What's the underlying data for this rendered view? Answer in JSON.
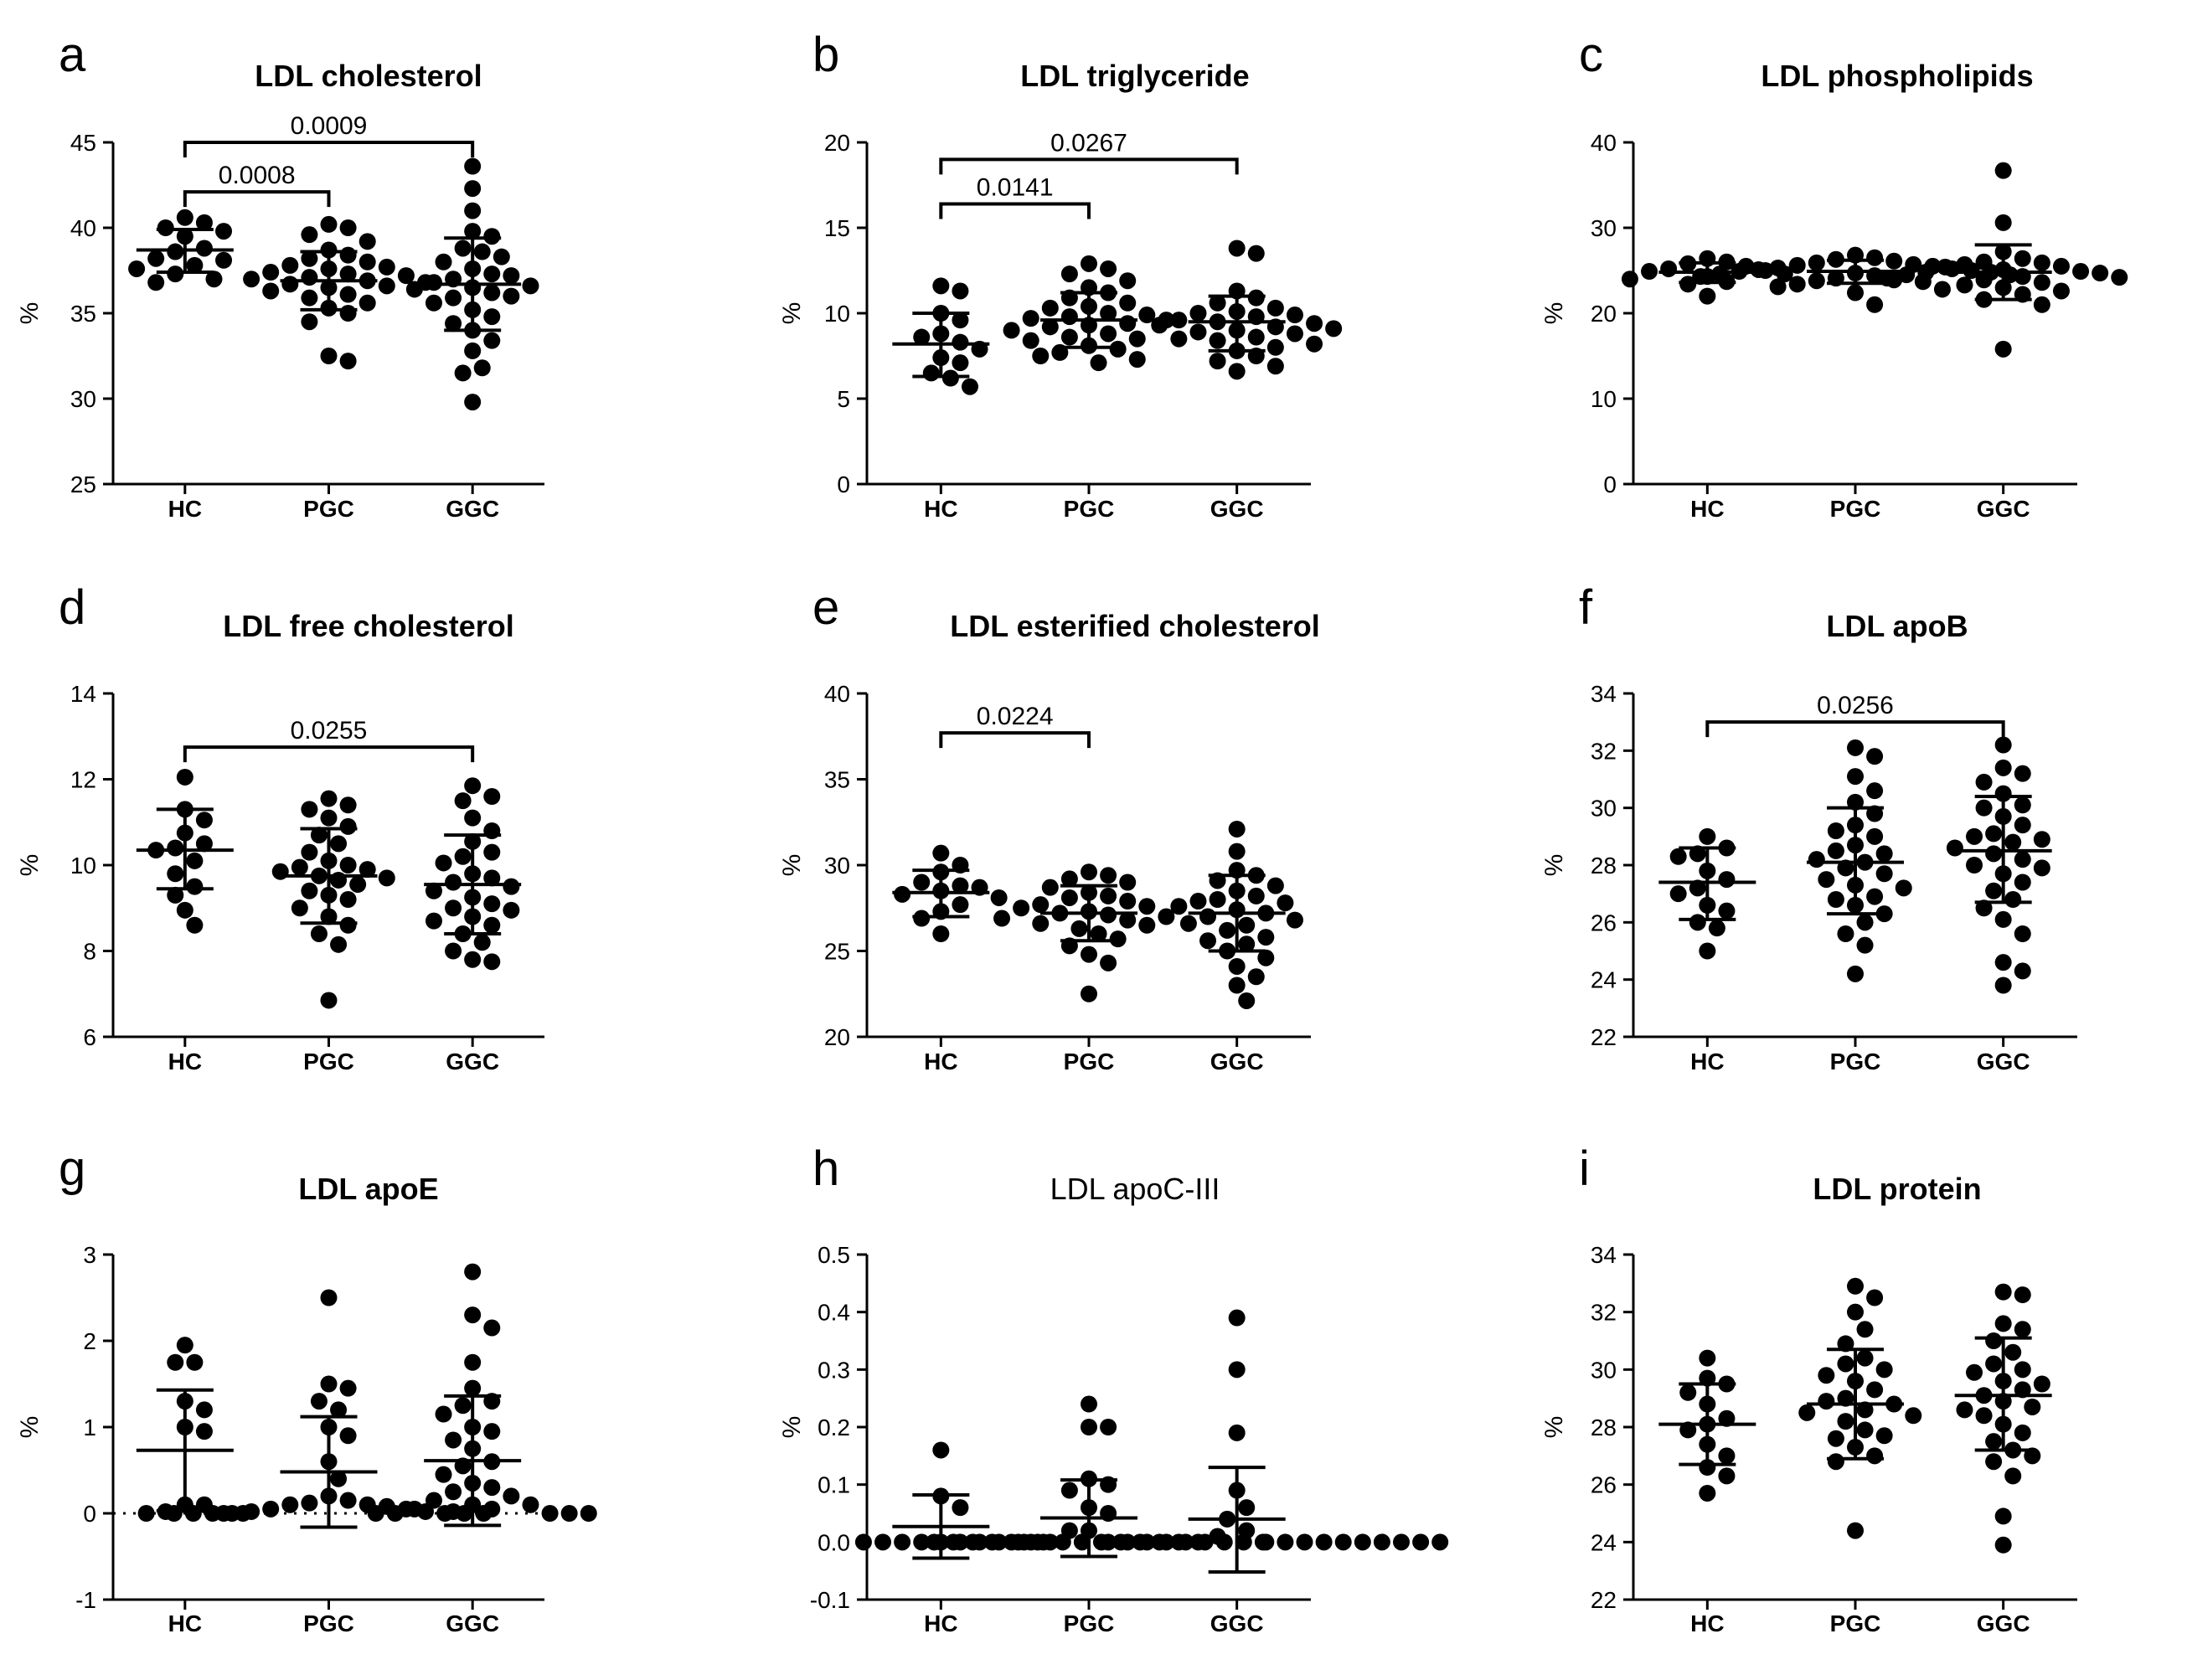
{
  "chart_data": [
    {
      "panel": "a",
      "type": "scatter",
      "title": "LDL cholesterol",
      "ylabel": "%",
      "ylim": [
        25,
        45
      ],
      "yticks": [
        25,
        30,
        35,
        40,
        45
      ],
      "categories": [
        "HC",
        "PGC",
        "GGC"
      ],
      "groups": [
        {
          "name": "HC",
          "mean": 38.7,
          "sd_low": 37.4,
          "sd_high": 39.9,
          "values": [
            40.6,
            40.3,
            40.0,
            39.8,
            39.5,
            38.8,
            38.6,
            38.2,
            37.8,
            37.6,
            37.3,
            37.0,
            36.8,
            38.1
          ]
        },
        {
          "name": "PGC",
          "mean": 36.9,
          "sd_low": 35.2,
          "sd_high": 38.6,
          "values": [
            40.2,
            40.0,
            39.6,
            39.2,
            38.7,
            38.4,
            38.0,
            37.8,
            37.6,
            37.4,
            37.2,
            37.1,
            37.0,
            36.9,
            36.8,
            36.7,
            36.5,
            36.3,
            36.1,
            35.9,
            35.6,
            35.3,
            35.0,
            34.5,
            32.5,
            32.2,
            37.3,
            36.6,
            38.2,
            37.7
          ]
        },
        {
          "name": "GGC",
          "mean": 36.7,
          "sd_low": 34.0,
          "sd_high": 39.4,
          "values": [
            43.6,
            42.3,
            41.0,
            39.8,
            39.5,
            38.8,
            38.6,
            38.0,
            37.6,
            37.3,
            37.0,
            36.8,
            36.6,
            36.4,
            36.2,
            36.0,
            35.6,
            35.2,
            34.8,
            34.4,
            34.0,
            33.4,
            32.8,
            31.8,
            31.5,
            29.8,
            37.2,
            36.5,
            35.9,
            38.3
          ]
        }
      ],
      "comparisons": [
        {
          "from": "HC",
          "to": "PGC",
          "label": "0.0008",
          "y": 42.1
        },
        {
          "from": "HC",
          "to": "GGC",
          "label": "0.0009",
          "y": 45.0
        }
      ]
    },
    {
      "panel": "b",
      "type": "scatter",
      "title": "LDL triglyceride",
      "ylabel": "%",
      "ylim": [
        0,
        20
      ],
      "yticks": [
        0,
        5,
        10,
        15,
        20
      ],
      "categories": [
        "HC",
        "PGC",
        "GGC"
      ],
      "groups": [
        {
          "name": "HC",
          "mean": 8.2,
          "sd_low": 6.3,
          "sd_high": 10.0,
          "values": [
            11.6,
            11.3,
            10.0,
            9.6,
            8.8,
            8.3,
            7.9,
            7.4,
            7.1,
            6.5,
            6.2,
            5.7,
            8.6
          ]
        },
        {
          "name": "PGC",
          "mean": 9.6,
          "sd_low": 8.0,
          "sd_high": 11.2,
          "values": [
            12.9,
            12.6,
            12.3,
            11.9,
            11.5,
            11.2,
            10.9,
            10.6,
            10.3,
            10.0,
            9.8,
            9.6,
            9.4,
            9.2,
            9.0,
            8.8,
            8.6,
            8.4,
            8.1,
            7.9,
            7.7,
            7.5,
            7.3,
            7.1,
            9.7,
            9.9,
            10.4,
            8.5,
            9.3
          ]
        },
        {
          "name": "GGC",
          "mean": 9.5,
          "sd_low": 7.8,
          "sd_high": 11.0,
          "values": [
            13.8,
            13.5,
            11.3,
            10.9,
            10.6,
            10.3,
            10.0,
            9.8,
            9.6,
            9.5,
            9.4,
            9.3,
            9.2,
            9.0,
            8.8,
            8.6,
            8.4,
            8.2,
            8.0,
            7.8,
            7.5,
            7.2,
            6.9,
            6.6,
            9.9,
            10.1,
            8.9,
            9.1,
            8.5
          ]
        }
      ],
      "comparisons": [
        {
          "from": "HC",
          "to": "PGC",
          "label": "0.0141",
          "y": 16.4
        },
        {
          "from": "HC",
          "to": "GGC",
          "label": "0.0267",
          "y": 19.0
        }
      ]
    },
    {
      "panel": "c",
      "type": "scatter",
      "title": "LDL phospholipids",
      "ylabel": "%",
      "ylim": [
        0,
        40
      ],
      "yticks": [
        0,
        10,
        20,
        30,
        40
      ],
      "categories": [
        "HC",
        "PGC",
        "GGC"
      ],
      "groups": [
        {
          "name": "HC",
          "mean": 24.8,
          "sd_low": 23.6,
          "sd_high": 25.9,
          "values": [
            26.4,
            26.0,
            25.8,
            25.5,
            25.2,
            24.9,
            24.6,
            24.3,
            24.0,
            23.7,
            23.4,
            22.0,
            25.0
          ]
        },
        {
          "name": "PGC",
          "mean": 24.9,
          "sd_low": 23.5,
          "sd_high": 26.2,
          "values": [
            26.8,
            26.5,
            26.3,
            26.1,
            25.9,
            25.7,
            25.5,
            25.3,
            25.1,
            25.0,
            24.9,
            24.8,
            24.7,
            24.6,
            24.5,
            24.3,
            24.1,
            23.9,
            23.7,
            23.4,
            23.1,
            22.8,
            22.4,
            21.0,
            25.6,
            25.2,
            24.4,
            23.8
          ]
        },
        {
          "name": "GGC",
          "mean": 24.8,
          "sd_low": 21.6,
          "sd_high": 28.0,
          "values": [
            36.7,
            30.6,
            27.2,
            26.4,
            26.0,
            25.7,
            25.4,
            25.1,
            24.9,
            24.7,
            24.5,
            24.3,
            24.1,
            23.9,
            23.6,
            23.3,
            23.0,
            22.6,
            22.2,
            21.6,
            21.0,
            15.8,
            25.5,
            24.8,
            24.2,
            25.9
          ]
        }
      ],
      "comparisons": []
    },
    {
      "panel": "d",
      "type": "scatter",
      "title": "LDL free cholesterol",
      "ylabel": "%",
      "ylim": [
        6,
        14
      ],
      "yticks": [
        6,
        8,
        10,
        12,
        14
      ],
      "categories": [
        "HC",
        "PGC",
        "GGC"
      ],
      "groups": [
        {
          "name": "HC",
          "mean": 10.35,
          "sd_low": 9.45,
          "sd_high": 11.3,
          "values": [
            12.05,
            11.3,
            11.05,
            10.75,
            10.5,
            10.4,
            10.35,
            10.1,
            9.8,
            9.5,
            9.3,
            8.95,
            8.6
          ]
        },
        {
          "name": "PGC",
          "mean": 9.75,
          "sd_low": 8.65,
          "sd_high": 10.85,
          "values": [
            11.55,
            11.4,
            11.3,
            11.1,
            10.9,
            10.7,
            10.5,
            10.3,
            10.1,
            9.95,
            9.85,
            9.75,
            9.65,
            9.55,
            9.4,
            9.2,
            9.0,
            8.8,
            8.6,
            8.4,
            8.15,
            6.85,
            9.9,
            9.7,
            10.0,
            9.3
          ]
        },
        {
          "name": "GGC",
          "mean": 9.55,
          "sd_low": 8.4,
          "sd_high": 10.7,
          "values": [
            11.85,
            11.6,
            11.5,
            11.1,
            10.8,
            10.55,
            10.3,
            10.05,
            9.8,
            9.6,
            9.5,
            9.4,
            9.25,
            9.1,
            8.95,
            8.8,
            8.6,
            8.4,
            8.2,
            8.0,
            7.8,
            7.75,
            9.7,
            9.0,
            10.2,
            8.7
          ]
        }
      ],
      "comparisons": [
        {
          "from": "HC",
          "to": "GGC",
          "label": "0.0255",
          "y": 12.75
        }
      ]
    },
    {
      "panel": "e",
      "type": "scatter",
      "title": "LDL esterified cholesterol",
      "ylabel": "%",
      "ylim": [
        20,
        40
      ],
      "yticks": [
        20,
        25,
        30,
        35,
        40
      ],
      "categories": [
        "HC",
        "PGC",
        "GGC"
      ],
      "groups": [
        {
          "name": "HC",
          "mean": 28.4,
          "sd_low": 27.0,
          "sd_high": 29.7,
          "values": [
            30.7,
            30.0,
            29.6,
            29.0,
            28.7,
            28.5,
            28.3,
            28.1,
            27.7,
            27.3,
            26.9,
            26.0,
            28.8
          ]
        },
        {
          "name": "PGC",
          "mean": 27.2,
          "sd_low": 25.6,
          "sd_high": 28.8,
          "values": [
            29.6,
            29.4,
            29.2,
            29.0,
            28.7,
            28.4,
            28.1,
            27.9,
            27.7,
            27.5,
            27.3,
            27.2,
            27.1,
            27.0,
            26.8,
            26.6,
            26.3,
            26.0,
            25.7,
            25.3,
            24.8,
            24.3,
            22.5,
            27.6,
            26.9,
            28.2,
            26.5
          ]
        },
        {
          "name": "GGC",
          "mean": 27.2,
          "sd_low": 25.0,
          "sd_high": 29.4,
          "values": [
            32.1,
            30.8,
            29.7,
            29.4,
            29.1,
            28.8,
            28.5,
            28.2,
            27.9,
            27.6,
            27.4,
            27.2,
            27.0,
            26.8,
            26.5,
            26.2,
            25.8,
            25.4,
            25.0,
            24.6,
            24.1,
            23.5,
            23.0,
            22.1,
            27.8,
            26.6,
            28.0,
            25.6
          ]
        }
      ],
      "comparisons": [
        {
          "from": "HC",
          "to": "PGC",
          "label": "0.0224",
          "y": 37.7
        }
      ]
    },
    {
      "panel": "f",
      "type": "scatter",
      "title": "LDL apoB",
      "ylabel": "%",
      "ylim": [
        22,
        34
      ],
      "yticks": [
        22,
        24,
        26,
        28,
        30,
        32,
        34
      ],
      "categories": [
        "HC",
        "PGC",
        "GGC"
      ],
      "groups": [
        {
          "name": "HC",
          "mean": 27.4,
          "sd_low": 26.1,
          "sd_high": 28.6,
          "values": [
            29.0,
            28.6,
            28.4,
            28.3,
            27.8,
            27.5,
            27.0,
            26.6,
            26.4,
            26.0,
            25.8,
            25.0,
            27.2
          ]
        },
        {
          "name": "PGC",
          "mean": 28.1,
          "sd_low": 26.3,
          "sd_high": 30.0,
          "values": [
            32.1,
            31.8,
            31.1,
            30.6,
            30.2,
            29.8,
            29.4,
            29.0,
            28.7,
            28.4,
            28.2,
            28.1,
            27.9,
            27.7,
            27.5,
            27.2,
            26.9,
            26.6,
            26.3,
            26.0,
            25.6,
            25.2,
            24.2,
            28.5,
            27.3,
            29.2,
            26.8
          ]
        },
        {
          "name": "GGC",
          "mean": 28.5,
          "sd_low": 26.7,
          "sd_high": 30.4,
          "values": [
            32.2,
            31.4,
            31.2,
            30.9,
            30.5,
            30.1,
            29.7,
            29.4,
            29.1,
            28.8,
            28.6,
            28.4,
            28.2,
            28.0,
            27.7,
            27.4,
            27.1,
            26.8,
            26.5,
            26.1,
            25.6,
            24.6,
            24.3,
            23.8,
            29.0,
            28.9,
            27.9,
            30.0
          ]
        }
      ],
      "comparisons": [
        {
          "from": "HC",
          "to": "GGC",
          "label": "0.0256",
          "y": 33.0
        }
      ]
    },
    {
      "panel": "g",
      "type": "scatter",
      "title": "LDL apoE",
      "ylabel": "%",
      "ylim": [
        -1,
        3
      ],
      "yticks": [
        -1,
        0,
        1,
        2,
        3
      ],
      "zero_line": true,
      "categories": [
        "HC",
        "PGC",
        "GGC"
      ],
      "groups": [
        {
          "name": "HC",
          "mean": 0.73,
          "sd_low": 0.03,
          "sd_high": 1.43,
          "values": [
            1.95,
            1.75,
            1.75,
            1.3,
            1.2,
            1.0,
            0.95,
            0.1,
            0.1,
            0.02,
            0.0,
            0.0,
            0.0
          ]
        },
        {
          "name": "PGC",
          "mean": 0.48,
          "sd_low": -0.16,
          "sd_high": 1.12,
          "values": [
            2.5,
            1.5,
            1.45,
            1.3,
            1.2,
            1.0,
            0.9,
            0.6,
            0.4,
            0.2,
            0.15,
            0.1,
            0.1,
            0.05,
            0.05,
            0.02,
            0.02,
            0.0,
            0.0,
            0.0,
            0.0,
            0.0,
            0.0,
            0.0,
            0.08,
            0.12
          ]
        },
        {
          "name": "GGC",
          "mean": 0.61,
          "sd_low": -0.14,
          "sd_high": 1.36,
          "values": [
            2.8,
            2.3,
            2.15,
            1.75,
            1.45,
            1.3,
            1.25,
            1.15,
            0.95,
            0.85,
            0.75,
            0.55,
            0.45,
            0.35,
            0.3,
            0.2,
            0.15,
            0.1,
            0.1,
            0.05,
            0.05,
            0.02,
            0.0,
            0.0,
            0.0,
            0.0,
            0.0,
            0.25,
            0.6,
            1.0
          ]
        }
      ],
      "comparisons": []
    },
    {
      "panel": "h",
      "type": "scatter",
      "title": "LDL apoC-III",
      "ylabel": "%",
      "ylim": [
        -0.1,
        0.5
      ],
      "yticks": [
        -0.1,
        0.0,
        0.1,
        0.2,
        0.3,
        0.4,
        0.5
      ],
      "tick_format": "fixed1",
      "categories": [
        "HC",
        "PGC",
        "GGC"
      ],
      "groups": [
        {
          "name": "HC",
          "mean": 0.027,
          "sd_low": -0.028,
          "sd_high": 0.082,
          "values": [
            0.16,
            0.08,
            0.06,
            0.0,
            0.0,
            0.0,
            0.0,
            0.0,
            0.0,
            0.0,
            0.0,
            0.0,
            0.0
          ]
        },
        {
          "name": "PGC",
          "mean": 0.042,
          "sd_low": -0.025,
          "sd_high": 0.108,
          "values": [
            0.24,
            0.2,
            0.2,
            0.11,
            0.1,
            0.09,
            0.06,
            0.05,
            0.02,
            0.02,
            0.0,
            0.0,
            0.0,
            0.0,
            0.0,
            0.0,
            0.0,
            0.0,
            0.0,
            0.0,
            0.0,
            0.0,
            0.0,
            0.0,
            0.0,
            0.0
          ]
        },
        {
          "name": "GGC",
          "mean": 0.04,
          "sd_low": -0.052,
          "sd_high": 0.13,
          "values": [
            0.39,
            0.3,
            0.19,
            0.09,
            0.06,
            0.04,
            0.02,
            0.01,
            0.0,
            0.0,
            0.0,
            0.0,
            0.0,
            0.0,
            0.0,
            0.0,
            0.0,
            0.0,
            0.0,
            0.0,
            0.0,
            0.0,
            0.0,
            0.0,
            0.0,
            0.0,
            0.0,
            0.0
          ]
        }
      ],
      "comparisons": []
    },
    {
      "panel": "i",
      "type": "scatter",
      "title": "LDL protein",
      "ylabel": "%",
      "ylim": [
        22,
        34
      ],
      "yticks": [
        22,
        24,
        26,
        28,
        30,
        32,
        34
      ],
      "categories": [
        "HC",
        "PGC",
        "GGC"
      ],
      "groups": [
        {
          "name": "HC",
          "mean": 28.1,
          "sd_low": 26.7,
          "sd_high": 29.5,
          "values": [
            30.4,
            29.7,
            29.5,
            29.2,
            28.8,
            28.3,
            27.9,
            27.4,
            27.0,
            26.6,
            26.3,
            25.7,
            28.1
          ]
        },
        {
          "name": "PGC",
          "mean": 28.8,
          "sd_low": 26.9,
          "sd_high": 30.7,
          "values": [
            32.9,
            32.5,
            32.0,
            31.4,
            30.9,
            30.4,
            30.0,
            29.6,
            29.3,
            29.0,
            28.8,
            28.6,
            28.4,
            28.2,
            27.9,
            27.6,
            27.3,
            27.0,
            26.8,
            24.4,
            28.9,
            29.8,
            27.7,
            30.2,
            28.5
          ]
        },
        {
          "name": "GGC",
          "mean": 29.1,
          "sd_low": 27.2,
          "sd_high": 31.1,
          "values": [
            32.7,
            32.6,
            31.6,
            31.4,
            31.0,
            30.6,
            30.2,
            29.9,
            29.6,
            29.3,
            29.1,
            28.9,
            28.7,
            28.4,
            28.1,
            27.8,
            27.5,
            27.2,
            26.8,
            26.3,
            24.9,
            23.9,
            29.5,
            28.6,
            30.0,
            27.0
          ]
        }
      ],
      "comparisons": []
    }
  ]
}
